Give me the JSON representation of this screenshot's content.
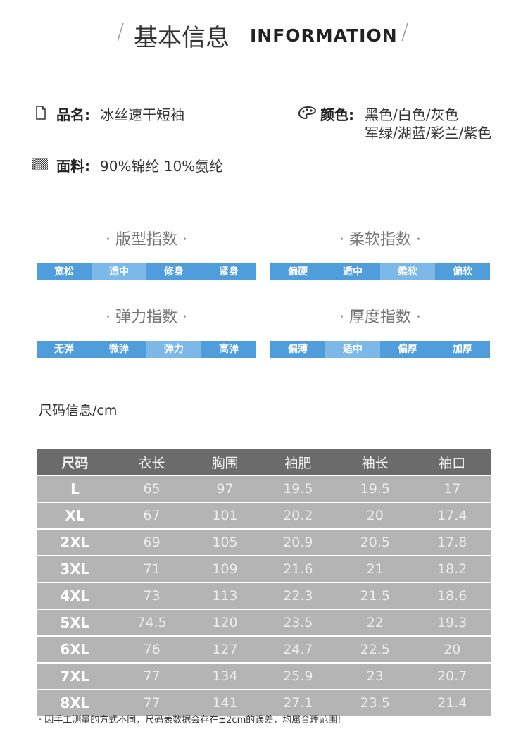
{
  "header": {
    "title_cn": "基本信息",
    "title_en": "INFORMATION"
  },
  "info": {
    "name": {
      "label": "品名:",
      "value": "冰丝速干短袖"
    },
    "color": {
      "label": "颜色:",
      "lines": [
        "黑色/白色/灰色",
        "军绿/湖蓝/彩兰/紫色"
      ]
    },
    "fabric": {
      "label": "面料:",
      "value": "90%锦纶 10%氨纶"
    }
  },
  "scales": [
    {
      "title": "· 版型指数 ·",
      "options": [
        "宽松",
        "适中",
        "修身",
        "紧身"
      ],
      "selected": 1
    },
    {
      "title": "· 柔软指数 ·",
      "options": [
        "偏硬",
        "适中",
        "柔软",
        "偏软"
      ],
      "selected": 2
    },
    {
      "title": "· 弹力指数 ·",
      "options": [
        "无弹",
        "微弹",
        "弹力",
        "高弹"
      ],
      "selected": 2
    },
    {
      "title": "· 厚度指数 ·",
      "options": [
        "偏薄",
        "适中",
        "偏厚",
        "加厚"
      ],
      "selected": 1
    }
  ],
  "size_table": {
    "title": "尺码信息/cm",
    "headers": [
      "尺码",
      "衣长",
      "胸围",
      "袖肥",
      "袖长",
      "袖口"
    ],
    "rows": [
      [
        "L",
        "65",
        "97",
        "19.5",
        "19.5",
        "17"
      ],
      [
        "XL",
        "67",
        "101",
        "20.2",
        "20",
        "17.4"
      ],
      [
        "2XL",
        "69",
        "105",
        "20.9",
        "20.5",
        "17.8"
      ],
      [
        "3XL",
        "71",
        "109",
        "21.6",
        "21",
        "18.2"
      ],
      [
        "4XL",
        "73",
        "113",
        "22.3",
        "21.5",
        "18.6"
      ],
      [
        "5XL",
        "74.5",
        "120",
        "23.5",
        "22",
        "19.3"
      ],
      [
        "6XL",
        "76",
        "127",
        "24.7",
        "22.5",
        "20"
      ],
      [
        "7XL",
        "77",
        "134",
        "25.9",
        "23",
        "20.7"
      ],
      [
        "8XL",
        "77",
        "141",
        "27.1",
        "23.5",
        "21.4"
      ]
    ],
    "note": "· 因手工测量的方式不同，尺码表数据会存在±2cm的误差，均属合理范围!"
  }
}
